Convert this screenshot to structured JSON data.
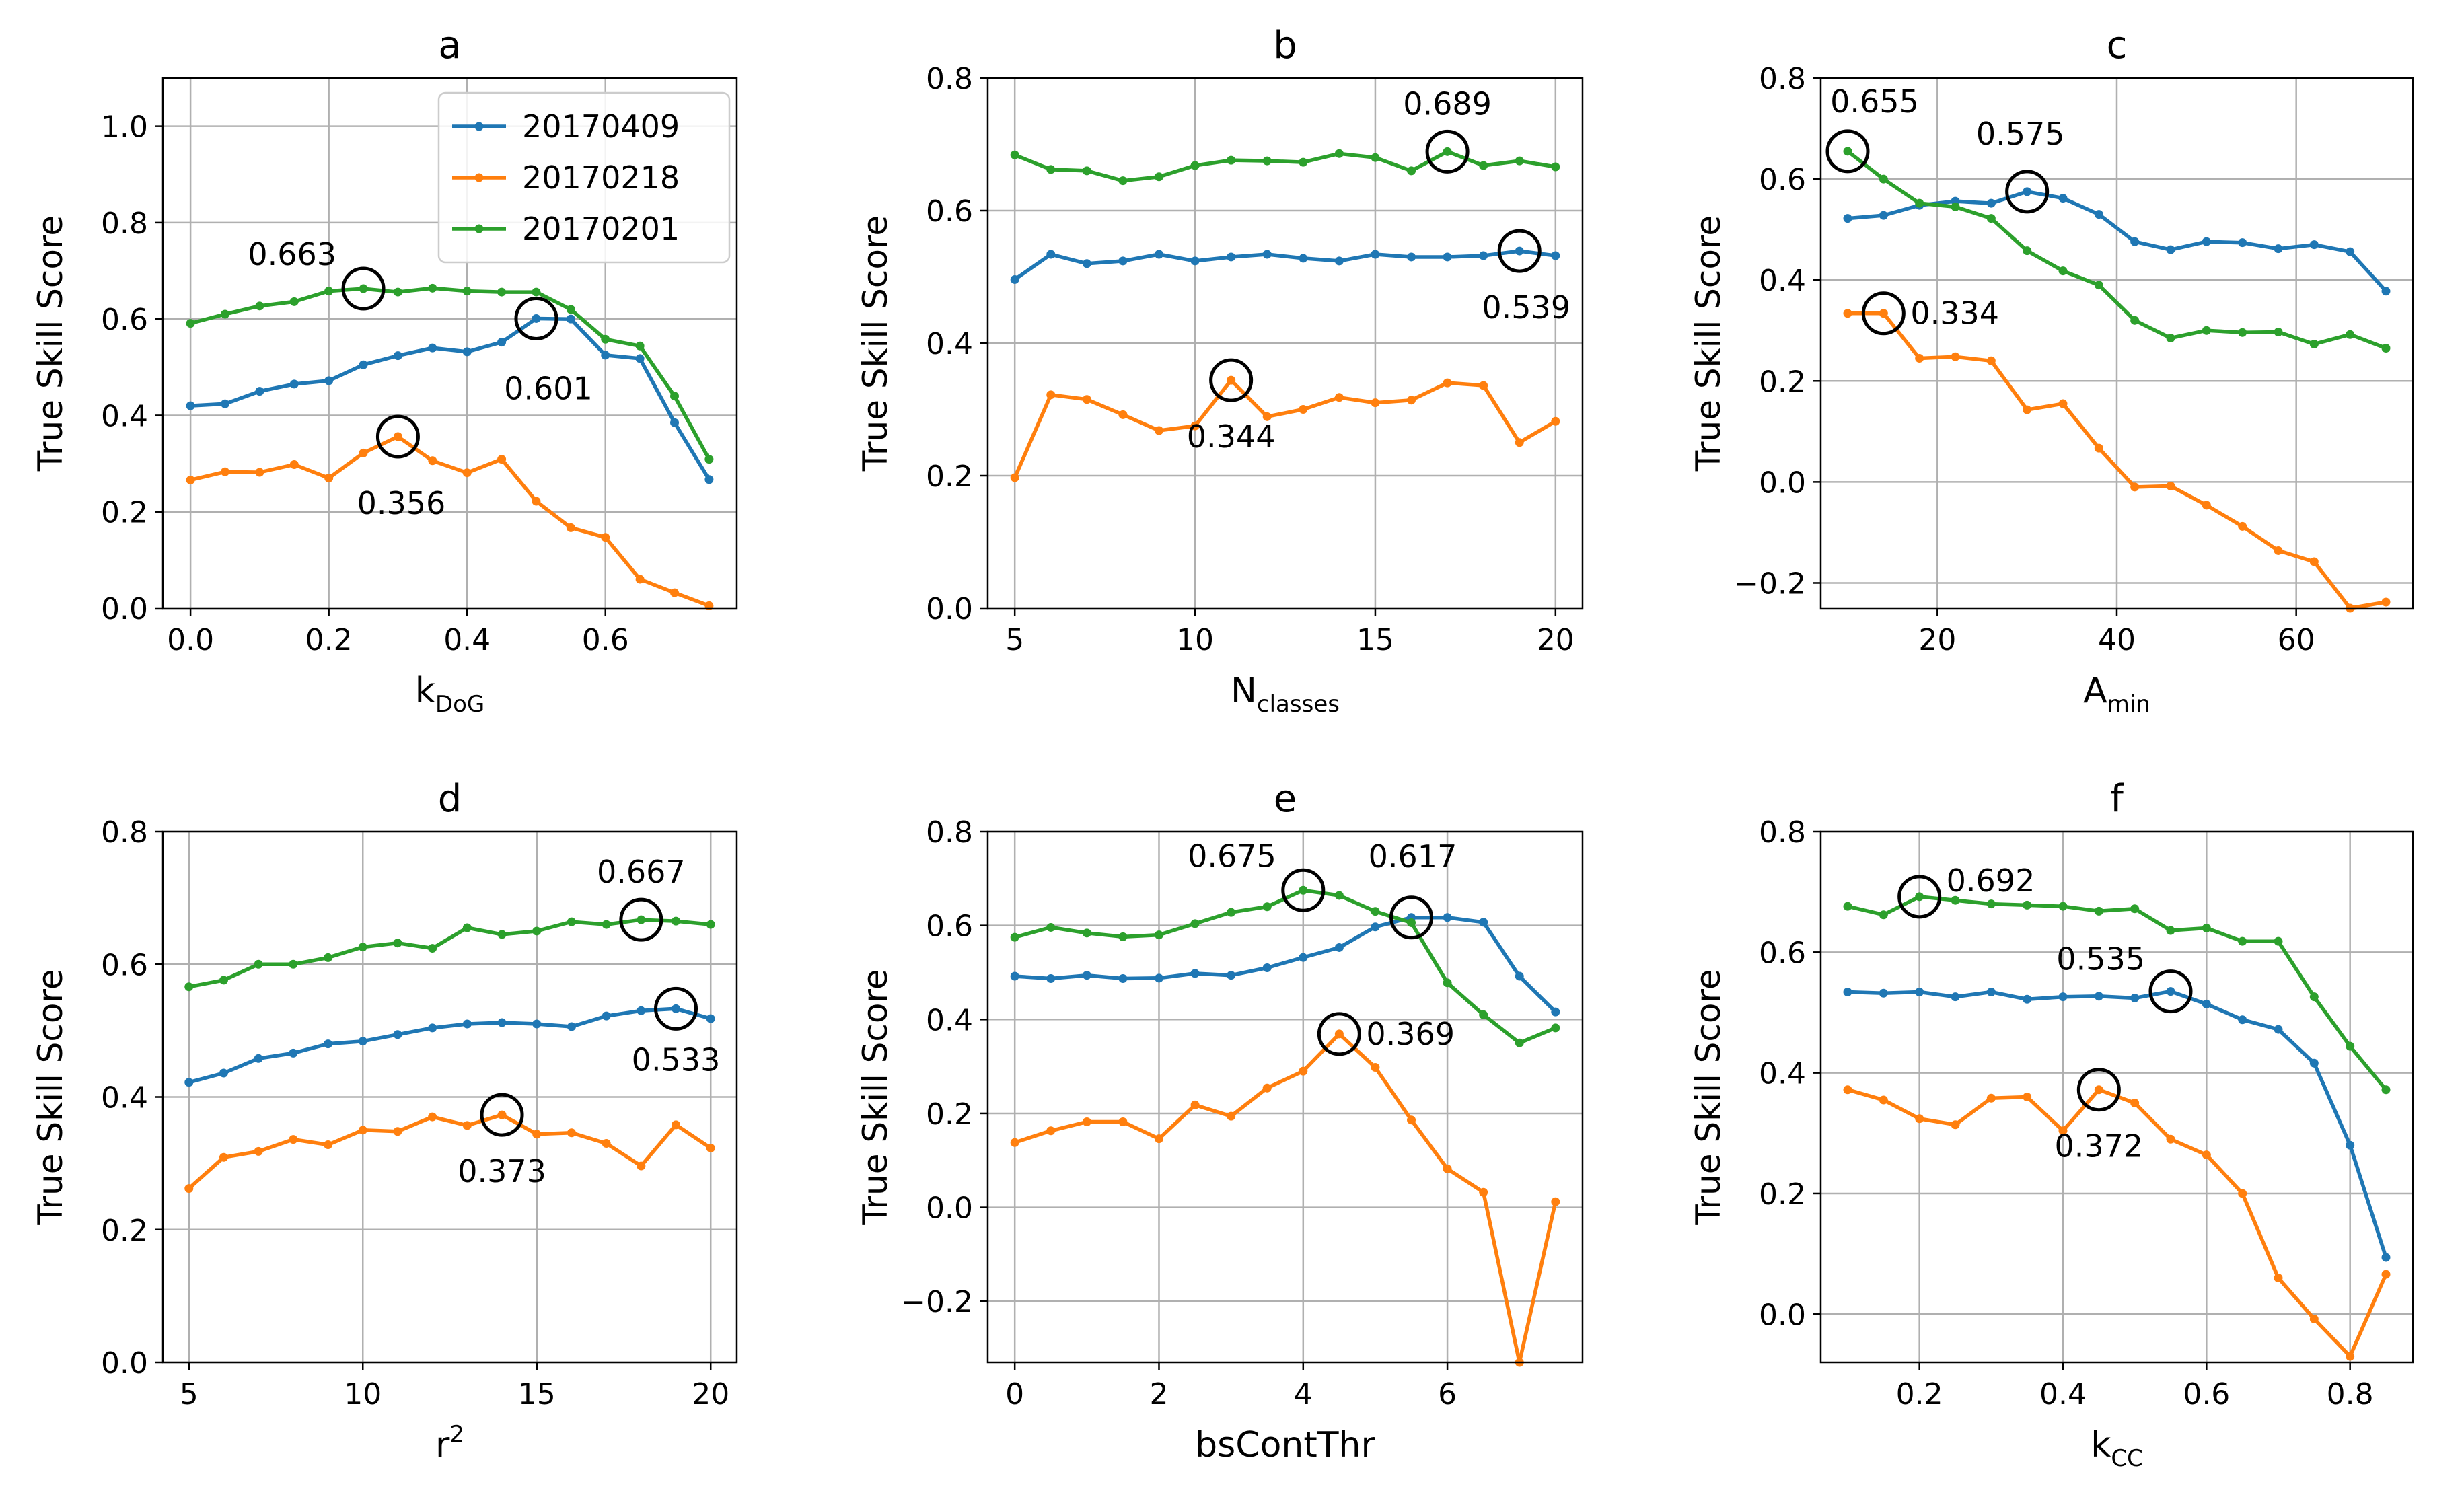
{
  "chart_data": [
    {
      "type": "line",
      "title": "a",
      "xlabel": "k",
      "xlabel_sub": "DoG",
      "xlabel_sup": "",
      "ylabel": "True Skill Score",
      "xlim": [
        -0.04,
        0.79
      ],
      "ylim": [
        0.0,
        1.1
      ],
      "xticks": [
        0.0,
        0.2,
        0.4,
        0.6
      ],
      "xticklabels": [
        "0.0",
        "0.2",
        "0.4",
        "0.6"
      ],
      "yticks": [
        0.0,
        0.2,
        0.4,
        0.6,
        0.8,
        1.0
      ],
      "yticklabels": [
        "0.0",
        "0.2",
        "0.4",
        "0.6",
        "0.8",
        "1.0"
      ],
      "grid": true,
      "legend": {
        "position": "top-right",
        "entries": [
          "20170409",
          "20170218",
          "20170201"
        ]
      },
      "x": [
        0.0,
        0.05,
        0.1,
        0.15,
        0.2,
        0.25,
        0.3,
        0.35,
        0.4,
        0.45,
        0.5,
        0.55,
        0.6,
        0.65,
        0.7,
        0.75
      ],
      "series": [
        {
          "name": "20170409",
          "values": [
            0.42,
            0.424,
            0.45,
            0.465,
            0.472,
            0.505,
            0.524,
            0.54,
            0.532,
            0.552,
            0.601,
            0.6,
            0.525,
            0.518,
            0.385,
            0.267
          ]
        },
        {
          "name": "20170218",
          "values": [
            0.266,
            0.283,
            0.282,
            0.298,
            0.27,
            0.322,
            0.356,
            0.306,
            0.281,
            0.309,
            0.222,
            0.167,
            0.147,
            0.06,
            0.032,
            0.005
          ]
        },
        {
          "name": "20170201",
          "values": [
            0.591,
            0.61,
            0.627,
            0.636,
            0.658,
            0.663,
            0.656,
            0.664,
            0.658,
            0.656,
            0.656,
            0.62,
            0.558,
            0.544,
            0.44,
            0.309
          ]
        }
      ],
      "annotations": [
        {
          "text": "0.663",
          "x": 0.25,
          "y": 0.663,
          "series": "20170201",
          "label_dx": -1
        },
        {
          "text": "0.601",
          "x": 0.5,
          "y": 0.601,
          "series": "20170409",
          "label_dx": 0.2
        },
        {
          "text": "0.356",
          "x": 0.3,
          "y": 0.356,
          "series": "20170218",
          "label_dx": 0.1
        }
      ]
    },
    {
      "type": "line",
      "title": "b",
      "xlabel": "N",
      "xlabel_sub": "classes",
      "xlabel_sup": "",
      "ylabel": "True Skill Score",
      "xlim": [
        4.25,
        20.75
      ],
      "ylim": [
        0.0,
        0.8
      ],
      "xticks": [
        5,
        10,
        15,
        20
      ],
      "xticklabels": [
        "5",
        "10",
        "15",
        "20"
      ],
      "yticks": [
        0.0,
        0.2,
        0.4,
        0.6,
        0.8
      ],
      "yticklabels": [
        "0.0",
        "0.2",
        "0.4",
        "0.6",
        "0.8"
      ],
      "grid": true,
      "x": [
        5,
        6,
        7,
        8,
        9,
        10,
        11,
        12,
        13,
        14,
        15,
        16,
        17,
        18,
        19,
        20
      ],
      "series": [
        {
          "name": "20170409",
          "values": [
            0.496,
            0.534,
            0.52,
            0.524,
            0.534,
            0.524,
            0.53,
            0.534,
            0.528,
            0.524,
            0.534,
            0.53,
            0.53,
            0.532,
            0.539,
            0.532
          ]
        },
        {
          "name": "20170218",
          "values": [
            0.197,
            0.322,
            0.315,
            0.292,
            0.268,
            0.275,
            0.344,
            0.289,
            0.3,
            0.318,
            0.31,
            0.314,
            0.34,
            0.336,
            0.25,
            0.282
          ]
        },
        {
          "name": "20170201",
          "values": [
            0.684,
            0.662,
            0.66,
            0.645,
            0.651,
            0.668,
            0.676,
            0.675,
            0.673,
            0.686,
            0.68,
            0.66,
            0.689,
            0.668,
            0.675,
            0.666
          ]
        }
      ],
      "annotations": [
        {
          "text": "0.689",
          "x": 17,
          "y": 0.689,
          "series": "20170201",
          "label_dx": 0
        },
        {
          "text": "0.539",
          "x": 19,
          "y": 0.539,
          "series": "20170409",
          "label_dx": 0.3
        },
        {
          "text": "0.344",
          "x": 11,
          "y": 0.344,
          "series": "20170218",
          "label_dx": 0
        }
      ]
    },
    {
      "type": "line",
      "title": "c",
      "xlabel": "A",
      "xlabel_sub": "min",
      "xlabel_sup": "",
      "ylabel": "True Skill Score",
      "xlim": [
        7.0,
        73.0
      ],
      "ylim": [
        -0.25,
        0.8
      ],
      "xticks": [
        20,
        40,
        60
      ],
      "xticklabels": [
        "20",
        "40",
        "60"
      ],
      "yticks": [
        -0.2,
        0.0,
        0.2,
        0.4,
        0.6,
        0.8
      ],
      "yticklabels": [
        "−0.2",
        "0.0",
        "0.2",
        "0.4",
        "0.6",
        "0.8"
      ],
      "grid": true,
      "x": [
        10,
        14,
        18,
        22,
        26,
        30,
        34,
        38,
        42,
        46,
        50,
        54,
        58,
        62,
        66,
        70
      ],
      "series": [
        {
          "name": "20170409",
          "values": [
            0.522,
            0.528,
            0.548,
            0.556,
            0.552,
            0.575,
            0.562,
            0.53,
            0.476,
            0.46,
            0.476,
            0.474,
            0.462,
            0.47,
            0.456,
            0.378
          ]
        },
        {
          "name": "20170218",
          "values": [
            0.334,
            0.334,
            0.245,
            0.248,
            0.24,
            0.143,
            0.155,
            0.067,
            -0.01,
            -0.008,
            -0.046,
            -0.088,
            -0.136,
            -0.158,
            -0.25,
            -0.238
          ]
        },
        {
          "name": "20170201",
          "values": [
            0.655,
            0.6,
            0.552,
            0.545,
            0.522,
            0.458,
            0.418,
            0.39,
            0.32,
            0.285,
            0.3,
            0.296,
            0.297,
            0.273,
            0.292,
            0.265
          ]
        }
      ],
      "annotations": [
        {
          "text": "0.655",
          "x": 10,
          "y": 0.655,
          "series": "20170201",
          "label_dx": 0.2
        },
        {
          "text": "0.575",
          "x": 30,
          "y": 0.575,
          "series": "20170409",
          "label_dx": -0.3
        },
        {
          "text": "0.334",
          "x": 14,
          "y": 0.334,
          "series": "20170218",
          "label_dx": 1
        }
      ]
    },
    {
      "type": "line",
      "title": "d",
      "xlabel": "r",
      "xlabel_sub": "",
      "xlabel_sup": "2",
      "ylabel": "True Skill Score",
      "xlim": [
        4.25,
        20.75
      ],
      "ylim": [
        0.0,
        0.8
      ],
      "xticks": [
        5,
        10,
        15,
        20
      ],
      "xticklabels": [
        "5",
        "10",
        "15",
        "20"
      ],
      "yticks": [
        0.0,
        0.2,
        0.4,
        0.6,
        0.8
      ],
      "yticklabels": [
        "0.0",
        "0.2",
        "0.4",
        "0.6",
        "0.8"
      ],
      "grid": true,
      "x": [
        5,
        6,
        7,
        8,
        9,
        10,
        11,
        12,
        13,
        14,
        15,
        16,
        17,
        18,
        19,
        20
      ],
      "series": [
        {
          "name": "20170409",
          "values": [
            0.422,
            0.436,
            0.458,
            0.466,
            0.48,
            0.484,
            0.494,
            0.504,
            0.51,
            0.512,
            0.51,
            0.506,
            0.522,
            0.53,
            0.533,
            0.518
          ]
        },
        {
          "name": "20170218",
          "values": [
            0.262,
            0.309,
            0.318,
            0.336,
            0.328,
            0.35,
            0.348,
            0.37,
            0.357,
            0.373,
            0.344,
            0.346,
            0.33,
            0.296,
            0.358,
            0.323
          ]
        },
        {
          "name": "20170201",
          "values": [
            0.566,
            0.576,
            0.6,
            0.6,
            0.61,
            0.626,
            0.632,
            0.624,
            0.655,
            0.645,
            0.65,
            0.664,
            0.66,
            0.667,
            0.665,
            0.66
          ]
        }
      ],
      "annotations": [
        {
          "text": "0.667",
          "x": 18,
          "y": 0.667,
          "series": "20170201",
          "label_dx": 0
        },
        {
          "text": "0.533",
          "x": 19,
          "y": 0.533,
          "series": "20170409",
          "label_dx": 0
        },
        {
          "text": "0.373",
          "x": 14,
          "y": 0.373,
          "series": "20170218",
          "label_dx": 0
        }
      ]
    },
    {
      "type": "line",
      "title": "e",
      "xlabel": "bsContThr",
      "xlabel_sub": "",
      "xlabel_sup": "",
      "ylabel": "True Skill Score",
      "xlim": [
        -0.375,
        7.875
      ],
      "ylim": [
        -0.33,
        0.8
      ],
      "xticks": [
        0,
        2,
        4,
        6
      ],
      "xticklabels": [
        "0",
        "2",
        "4",
        "6"
      ],
      "yticks": [
        -0.2,
        0.0,
        0.2,
        0.4,
        0.6,
        0.8
      ],
      "yticklabels": [
        "−0.2",
        "0.0",
        "0.2",
        "0.4",
        "0.6",
        "0.8"
      ],
      "grid": true,
      "x": [
        0,
        0.5,
        1,
        1.5,
        2,
        2.5,
        3,
        3.5,
        4,
        4.5,
        5,
        5.5,
        6,
        6.5,
        7,
        7.5
      ],
      "series": [
        {
          "name": "20170409",
          "values": [
            0.492,
            0.487,
            0.494,
            0.487,
            0.488,
            0.498,
            0.494,
            0.51,
            0.532,
            0.553,
            0.597,
            0.617,
            0.617,
            0.607,
            0.492,
            0.416
          ]
        },
        {
          "name": "20170218",
          "values": [
            0.138,
            0.163,
            0.182,
            0.182,
            0.146,
            0.218,
            0.194,
            0.254,
            0.29,
            0.369,
            0.298,
            0.186,
            0.082,
            0.032,
            -0.33,
            0.012
          ]
        },
        {
          "name": "20170201",
          "values": [
            0.575,
            0.596,
            0.584,
            0.576,
            0.58,
            0.604,
            0.628,
            0.64,
            0.675,
            0.664,
            0.63,
            0.606,
            0.478,
            0.41,
            0.35,
            0.382
          ]
        }
      ],
      "annotations": [
        {
          "text": "0.675",
          "x": 4,
          "y": 0.675,
          "series": "20170201",
          "label_dx": -1
        },
        {
          "text": "0.617",
          "x": 5.5,
          "y": 0.617,
          "series": "20170409",
          "label_dx": 0.1
        },
        {
          "text": "0.369",
          "x": 4.5,
          "y": 0.369,
          "series": "20170218",
          "label_dx": 1
        }
      ]
    },
    {
      "type": "line",
      "title": "f",
      "xlabel": "k",
      "xlabel_sub": "CC",
      "xlabel_sup": "",
      "ylabel": "True Skill Score",
      "xlim": [
        0.0625,
        0.8875
      ],
      "ylim": [
        -0.08,
        0.8
      ],
      "xticks": [
        0.2,
        0.4,
        0.6,
        0.8
      ],
      "xticklabels": [
        "0.2",
        "0.4",
        "0.6",
        "0.8"
      ],
      "yticks": [
        0.0,
        0.2,
        0.4,
        0.6,
        0.8
      ],
      "yticklabels": [
        "0.0",
        "0.2",
        "0.4",
        "0.6",
        "0.8"
      ],
      "grid": true,
      "x": [
        0.1,
        0.15,
        0.2,
        0.25,
        0.3,
        0.35,
        0.4,
        0.45,
        0.5,
        0.55,
        0.6,
        0.65,
        0.7,
        0.75,
        0.8,
        0.85
      ],
      "series": [
        {
          "name": "20170409",
          "values": [
            0.534,
            0.532,
            0.534,
            0.526,
            0.534,
            0.522,
            0.526,
            0.527,
            0.524,
            0.535,
            0.514,
            0.488,
            0.472,
            0.416,
            0.28,
            0.094
          ]
        },
        {
          "name": "20170218",
          "values": [
            0.372,
            0.355,
            0.324,
            0.314,
            0.358,
            0.36,
            0.304,
            0.372,
            0.35,
            0.29,
            0.264,
            0.2,
            0.06,
            -0.008,
            -0.07,
            0.066
          ]
        },
        {
          "name": "20170201",
          "values": [
            0.676,
            0.662,
            0.692,
            0.686,
            0.68,
            0.678,
            0.676,
            0.668,
            0.672,
            0.636,
            0.64,
            0.618,
            0.618,
            0.526,
            0.444,
            0.372
          ]
        }
      ],
      "annotations": [
        {
          "text": "0.692",
          "x": 0.2,
          "y": 0.692,
          "series": "20170201",
          "label_dx": 1
        },
        {
          "text": "0.535",
          "x": 0.55,
          "y": 0.535,
          "series": "20170409",
          "label_dx": -1
        },
        {
          "text": "0.372",
          "x": 0.45,
          "y": 0.372,
          "series": "20170218",
          "label_dx": 0
        }
      ]
    }
  ],
  "colors": {
    "20170409": "#1f77b4",
    "20170218": "#ff7f0e",
    "20170201": "#2ca02c",
    "grid": "#b0b0b0",
    "axis": "#000000"
  }
}
